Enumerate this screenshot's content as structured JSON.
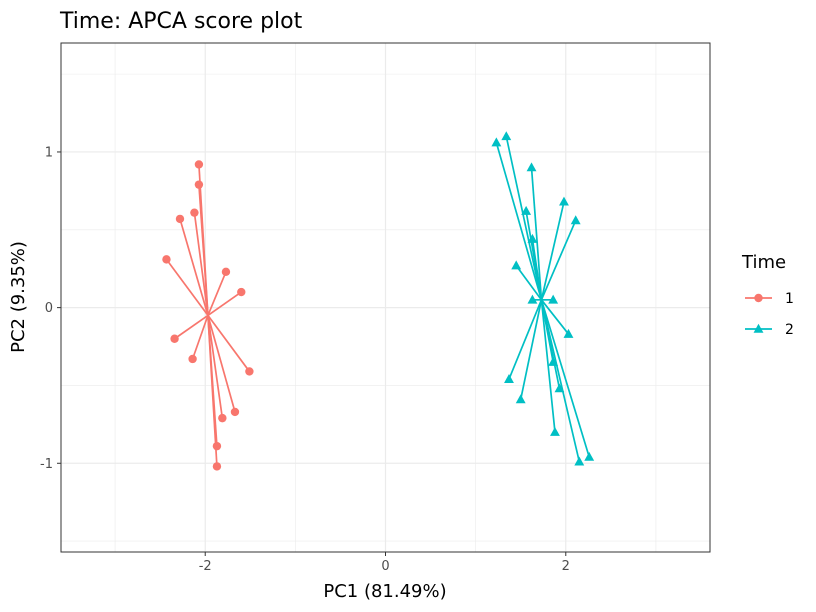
{
  "chart_data": {
    "type": "scatter",
    "title": "Time: APCA score plot",
    "xlabel": "PC1 (81.49%)",
    "ylabel": "PC2 (9.35%)",
    "xlim": [
      -3.6,
      3.6
    ],
    "ylim": [
      -1.57,
      1.7
    ],
    "x_ticks": [
      -2,
      0,
      2
    ],
    "x_tick_labels": [
      "-2",
      "0",
      "2"
    ],
    "y_ticks": [
      -1,
      0,
      1
    ],
    "y_tick_labels": [
      "-1",
      "0",
      "1"
    ],
    "grid": true,
    "legend": {
      "title": "Time",
      "position": "right"
    },
    "series": [
      {
        "name": "1",
        "color": "#F8766D",
        "marker": "circle",
        "centroid": [
          -1.97,
          -0.05
        ],
        "points": [
          [
            -2.07,
            0.92
          ],
          [
            -2.07,
            0.79
          ],
          [
            -2.12,
            0.61
          ],
          [
            -2.28,
            0.57
          ],
          [
            -2.43,
            0.31
          ],
          [
            -1.77,
            0.23
          ],
          [
            -1.6,
            0.1
          ],
          [
            -2.34,
            -0.2
          ],
          [
            -2.14,
            -0.33
          ],
          [
            -1.51,
            -0.41
          ],
          [
            -1.67,
            -0.67
          ],
          [
            -1.81,
            -0.71
          ],
          [
            -1.87,
            -0.89
          ],
          [
            -1.87,
            -1.02
          ]
        ]
      },
      {
        "name": "2",
        "color": "#00BFC4",
        "marker": "triangle",
        "centroid": [
          1.73,
          0.05
        ],
        "points": [
          [
            1.23,
            1.06
          ],
          [
            1.34,
            1.1
          ],
          [
            1.62,
            0.9
          ],
          [
            1.98,
            0.68
          ],
          [
            1.56,
            0.62
          ],
          [
            2.11,
            0.56
          ],
          [
            1.63,
            0.44
          ],
          [
            1.45,
            0.27
          ],
          [
            1.63,
            0.05
          ],
          [
            1.86,
            0.05
          ],
          [
            2.03,
            -0.17
          ],
          [
            1.86,
            -0.35
          ],
          [
            1.37,
            -0.46
          ],
          [
            1.5,
            -0.59
          ],
          [
            1.93,
            -0.52
          ],
          [
            1.88,
            -0.8
          ],
          [
            2.15,
            -0.99
          ],
          [
            2.26,
            -0.96
          ]
        ]
      }
    ]
  }
}
